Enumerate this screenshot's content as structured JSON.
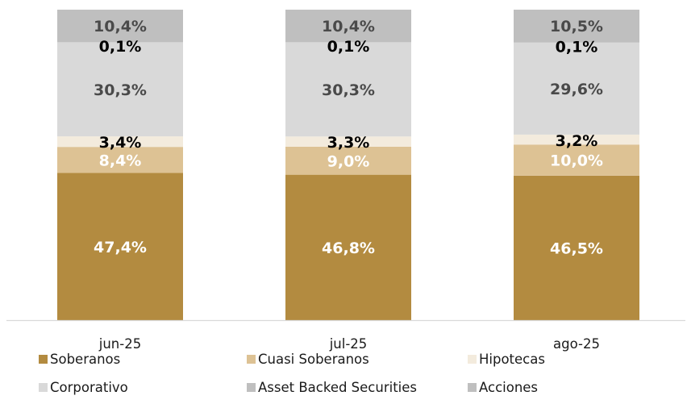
{
  "chart_data": {
    "type": "bar",
    "stacked": true,
    "normalized_percent": true,
    "categories": [
      "jun-25",
      "jul-25",
      "ago-25"
    ],
    "series": [
      {
        "name": "Soberanos",
        "color": "#b38b40",
        "label_color": "#ffffff",
        "values": [
          47.4,
          46.8,
          46.5
        ],
        "labels": [
          "47,4%",
          "46,8%",
          "46,5%"
        ]
      },
      {
        "name": "Cuasi Soberanos",
        "color": "#ddc294",
        "label_color": "#ffffff",
        "values": [
          8.4,
          9.0,
          10.0
        ],
        "labels": [
          "8,4%",
          "9,0%",
          "10,0%"
        ]
      },
      {
        "name": "Hipotecas",
        "color": "#f3ebdd",
        "label_color": "#000000",
        "values": [
          3.4,
          3.3,
          3.2
        ],
        "labels": [
          "3,4%",
          "3,3%",
          "3,2%"
        ]
      },
      {
        "name": "Corporativo",
        "color": "#d9d9d9",
        "label_color": "#4a4a4a",
        "values": [
          30.3,
          30.3,
          29.6
        ],
        "labels": [
          "30,3%",
          "30,3%",
          "29,6%"
        ]
      },
      {
        "name": "Asset Backed Securities",
        "color": "#bfbfbf",
        "label_color": "#000000",
        "values": [
          0.1,
          0.1,
          0.1
        ],
        "labels": [
          "0,1%",
          "0,1%",
          "0,1%"
        ]
      },
      {
        "name": "Acciones",
        "color": "#bfbfbf",
        "label_color": "#4a4a4a",
        "values": [
          10.4,
          10.4,
          10.5
        ],
        "labels": [
          "10,4%",
          "10,4%",
          "10,5%"
        ]
      }
    ],
    "title": "",
    "xlabel": "",
    "ylabel": "",
    "ylim": [
      0,
      100
    ],
    "grid": false,
    "legend_position": "bottom"
  }
}
